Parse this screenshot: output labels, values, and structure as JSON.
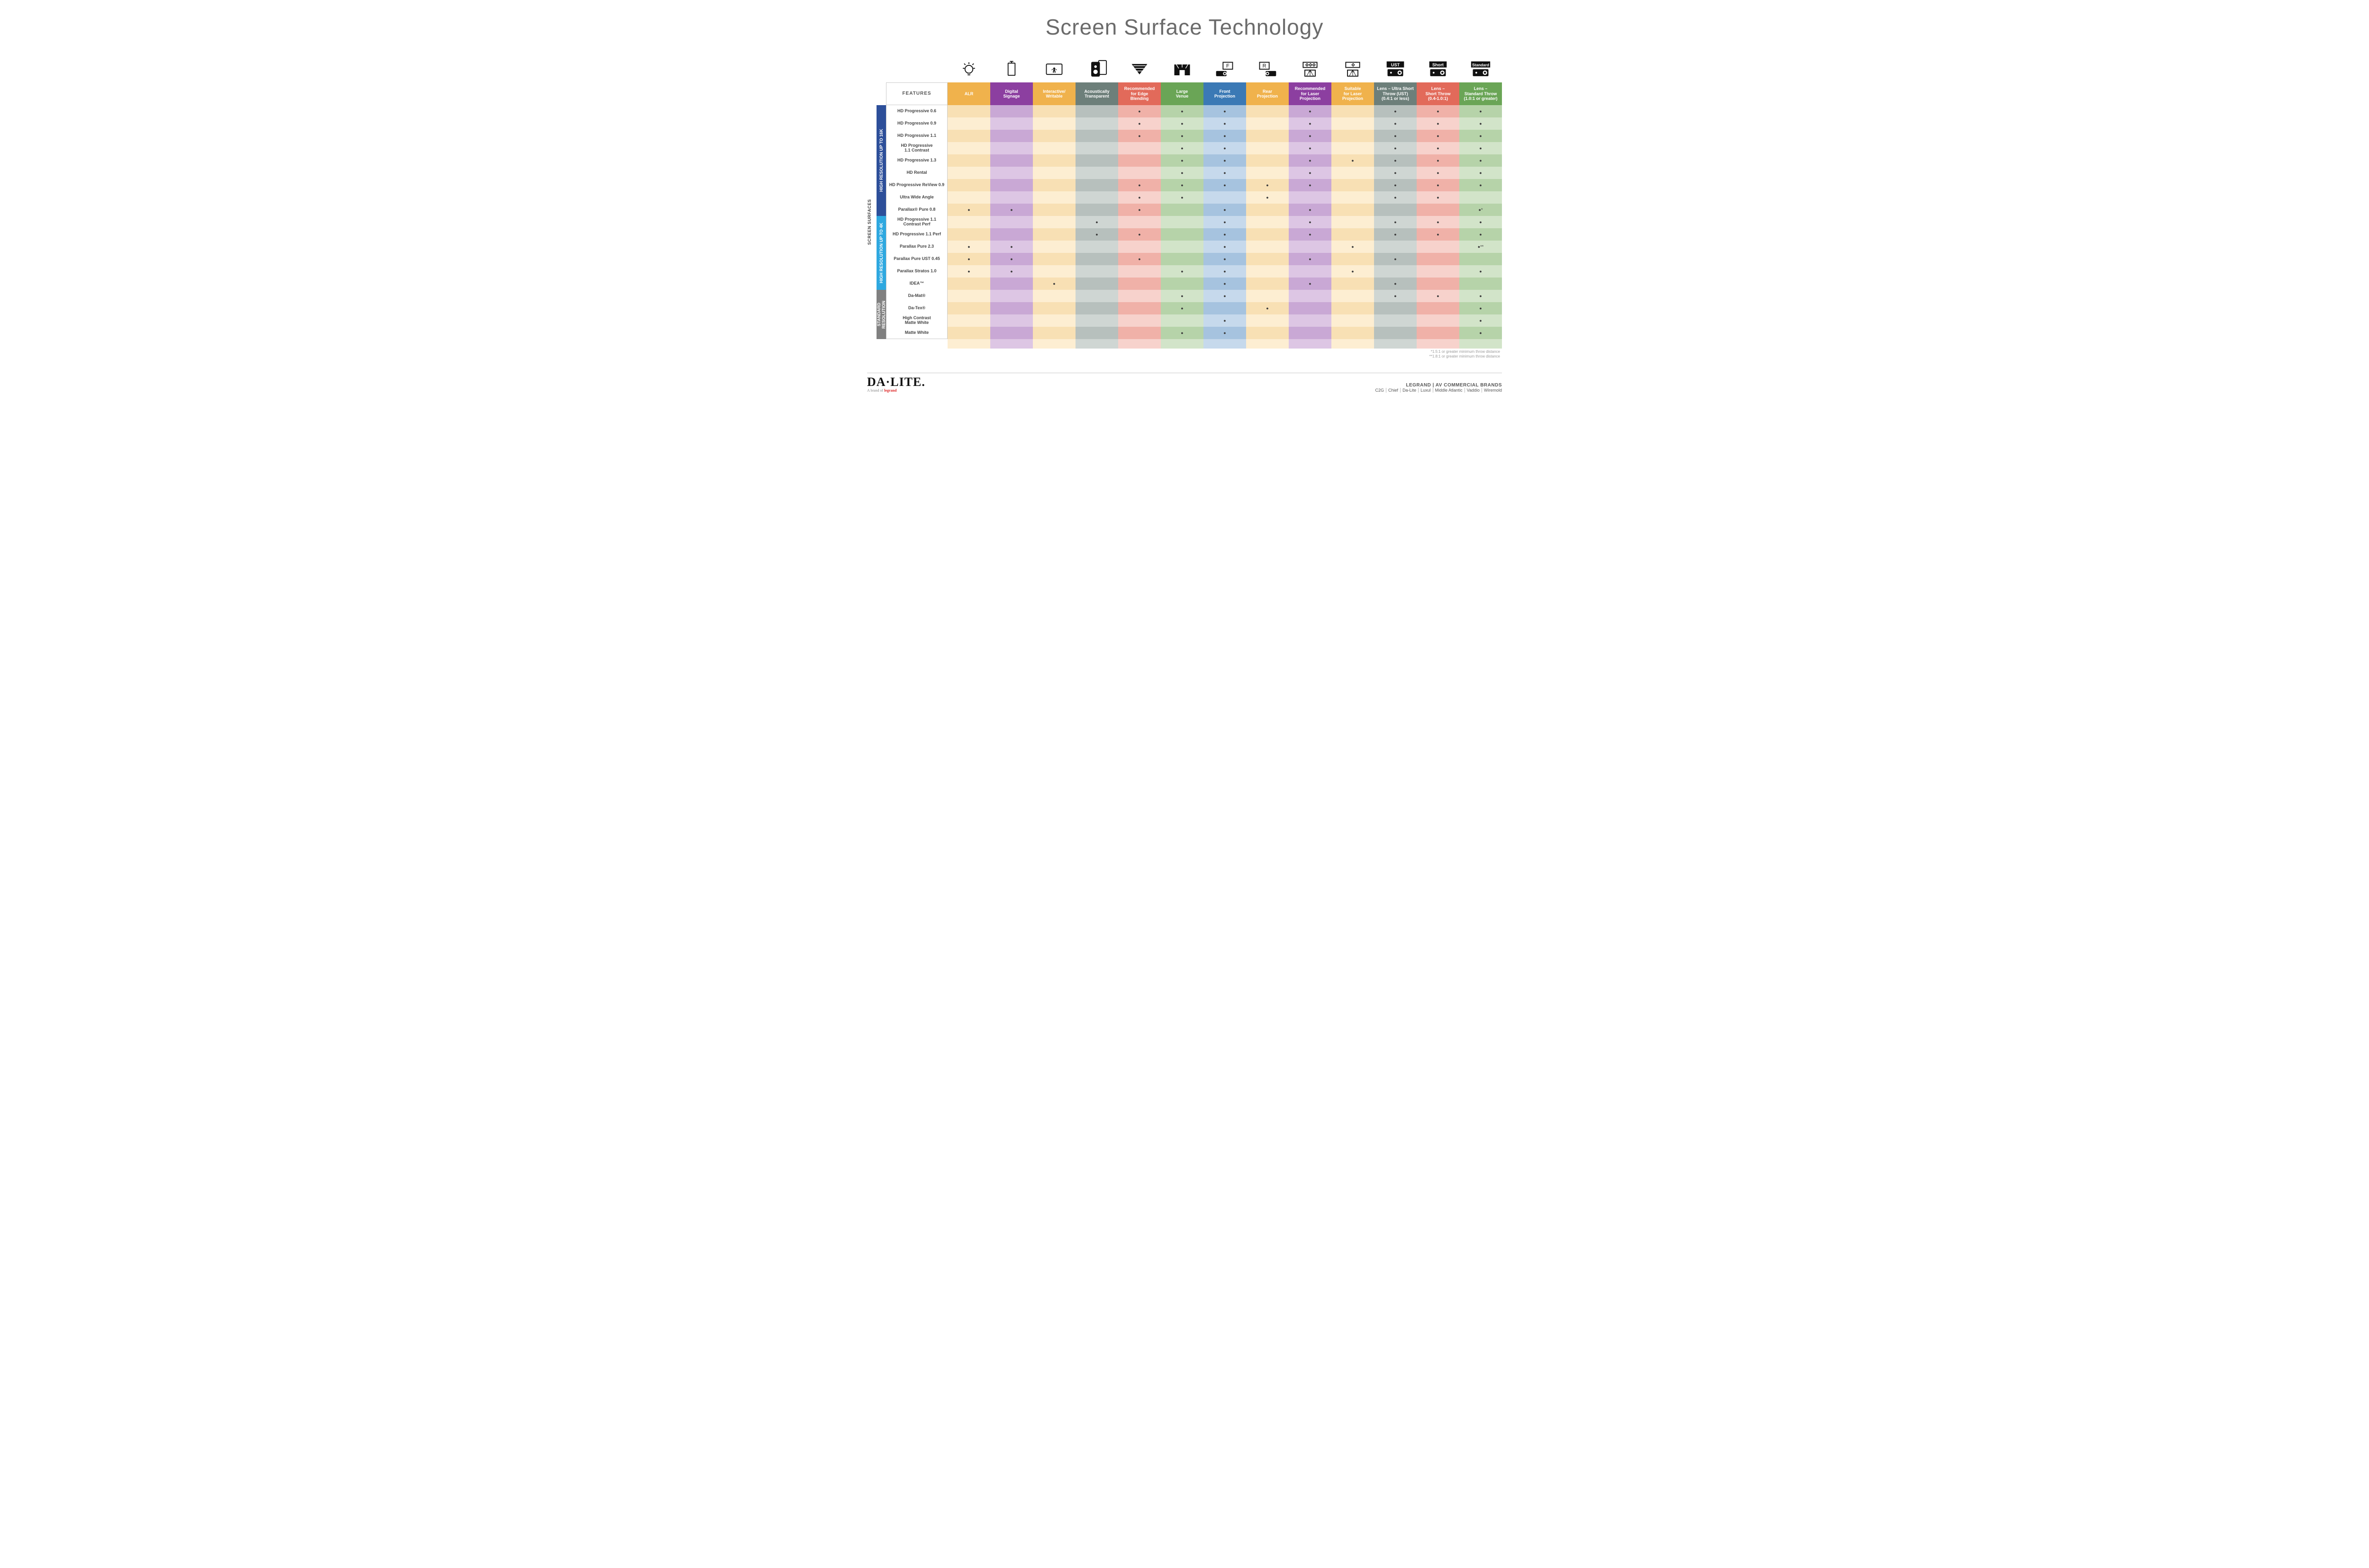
{
  "title": "Screen Surface Technology",
  "features_label": "FEATURES",
  "side_label": "SCREEN SURFACES",
  "columns": [
    {
      "label": "ALR",
      "color": "#f0b24c",
      "lightA": "#f8e0b4",
      "lightB": "#fdeed2"
    },
    {
      "label": "Digital\nSignage",
      "color": "#8c3fa0",
      "lightA": "#c9a8d5",
      "lightB": "#ddc6e4"
    },
    {
      "label": "Interactive/\nWritable",
      "color": "#f0b24c",
      "lightA": "#f8e0b4",
      "lightB": "#fdeed2"
    },
    {
      "label": "Acoustically\nTransparent",
      "color": "#6d7f7a",
      "lightA": "#b7c0bd",
      "lightB": "#cfd6d3"
    },
    {
      "label": "Recommended\nfor Edge\nBlending",
      "color": "#e26a5a",
      "lightA": "#f0b1a8",
      "lightB": "#f7d2cc"
    },
    {
      "label": "Large\nVenue",
      "color": "#6aa556",
      "lightA": "#b6d3a9",
      "lightB": "#d2e4c9"
    },
    {
      "label": "Front\nProjection",
      "color": "#3b79b5",
      "lightA": "#a6c3df",
      "lightB": "#c6d9ec"
    },
    {
      "label": "Rear\nProjection",
      "color": "#f0b24c",
      "lightA": "#f8e0b4",
      "lightB": "#fdeed2"
    },
    {
      "label": "Recommended\nfor Laser\nProjection",
      "color": "#8c3fa0",
      "lightA": "#c9a8d5",
      "lightB": "#ddc6e4"
    },
    {
      "label": "Suitable\nfor Laser\nProjection",
      "color": "#f0b24c",
      "lightA": "#f8e0b4",
      "lightB": "#fdeed2"
    },
    {
      "label": "Lens – Ultra Short\nThrow (UST)\n(0.4:1 or less)",
      "color": "#6d7f7a",
      "lightA": "#b7c0bd",
      "lightB": "#cfd6d3"
    },
    {
      "label": "Lens –\nShort Throw\n(0.4-1.0:1)",
      "color": "#e26a5a",
      "lightA": "#f0b1a8",
      "lightB": "#f7d2cc"
    },
    {
      "label": "Lens –\nStandard Throw\n(1.0:1 or greater)",
      "color": "#6aa556",
      "lightA": "#b6d3a9",
      "lightB": "#d2e4c9"
    }
  ],
  "categories": [
    {
      "label": "HIGH RESOLUTION UP TO 16K",
      "color": "#2d4f9a",
      "rows": [
        {
          "label": "HD Progressive 0.6",
          "cells": [
            "",
            "",
            "",
            "",
            "•",
            "•",
            "•",
            "",
            "•",
            "",
            "•",
            "•",
            "•"
          ]
        },
        {
          "label": "HD Progressive 0.9",
          "cells": [
            "",
            "",
            "",
            "",
            "•",
            "•",
            "•",
            "",
            "•",
            "",
            "•",
            "•",
            "•"
          ]
        },
        {
          "label": "HD Progressive 1.1",
          "cells": [
            "",
            "",
            "",
            "",
            "•",
            "•",
            "•",
            "",
            "•",
            "",
            "•",
            "•",
            "•"
          ]
        },
        {
          "label": "HD Progressive\n1.1 Contrast",
          "cells": [
            "",
            "",
            "",
            "",
            "",
            "•",
            "•",
            "",
            "•",
            "",
            "•",
            "•",
            "•"
          ]
        },
        {
          "label": "HD Progressive 1.3",
          "cells": [
            "",
            "",
            "",
            "",
            "",
            "•",
            "•",
            "",
            "•",
            "•",
            "•",
            "•",
            "•"
          ]
        },
        {
          "label": "HD Rental",
          "cells": [
            "",
            "",
            "",
            "",
            "",
            "•",
            "•",
            "",
            "•",
            "",
            "•",
            "•",
            "•"
          ]
        },
        {
          "label": "HD Progressive ReView 0.9",
          "cells": [
            "",
            "",
            "",
            "",
            "•",
            "•",
            "•",
            "•",
            "•",
            "",
            "•",
            "•",
            "•"
          ]
        },
        {
          "label": "Ultra Wide Angle",
          "cells": [
            "",
            "",
            "",
            "",
            "•",
            "•",
            "",
            "•",
            "",
            "",
            "•",
            "•",
            ""
          ]
        },
        {
          "label": "Parallax® Pure 0.8",
          "cells": [
            "•",
            "•",
            "",
            "",
            "•",
            "",
            "•",
            "",
            "•",
            "",
            "",
            "",
            "•*"
          ]
        }
      ]
    },
    {
      "label": "HIGH RESOLUTION UP TO 4K",
      "color": "#2ea8e0",
      "rows": [
        {
          "label": "HD Progressive 1.1\nContrast Perf",
          "cells": [
            "",
            "",
            "",
            "•",
            "",
            "",
            "•",
            "",
            "•",
            "",
            "•",
            "•",
            "•"
          ]
        },
        {
          "label": "HD Progressive 1.1 Perf",
          "cells": [
            "",
            "",
            "",
            "•",
            "•",
            "",
            "•",
            "",
            "•",
            "",
            "•",
            "•",
            "•"
          ]
        },
        {
          "label": "Parallax Pure 2.3",
          "cells": [
            "•",
            "•",
            "",
            "",
            "",
            "",
            "•",
            "",
            "",
            "•",
            "",
            "",
            "•**"
          ]
        },
        {
          "label": "Parallax Pure UST 0.45",
          "cells": [
            "•",
            "•",
            "",
            "",
            "•",
            "",
            "•",
            "",
            "•",
            "",
            "•",
            "",
            ""
          ]
        },
        {
          "label": "Parallax Stratos 1.0",
          "cells": [
            "•",
            "•",
            "",
            "",
            "",
            "•",
            "•",
            "",
            "",
            "•",
            "",
            "",
            "•"
          ]
        },
        {
          "label": "IDEA™",
          "cells": [
            "",
            "",
            "•",
            "",
            "",
            "",
            "•",
            "",
            "•",
            "",
            "•",
            "",
            ""
          ]
        }
      ]
    },
    {
      "label": "STANDARD\nRESOLUTION",
      "color": "#808080",
      "rows": [
        {
          "label": "Da-Mat®",
          "cells": [
            "",
            "",
            "",
            "",
            "",
            "•",
            "•",
            "",
            "",
            "",
            "•",
            "•",
            "•"
          ]
        },
        {
          "label": "Da-Tex®",
          "cells": [
            "",
            "",
            "",
            "",
            "",
            "•",
            "",
            "•",
            "",
            "",
            "",
            "",
            "•"
          ]
        },
        {
          "label": "High Contrast\nMatte White",
          "cells": [
            "",
            "",
            "",
            "",
            "",
            "",
            "•",
            "",
            "",
            "",
            "",
            "",
            "•"
          ]
        },
        {
          "label": "Matte White",
          "cells": [
            "",
            "",
            "",
            "",
            "",
            "•",
            "•",
            "",
            "",
            "",
            "",
            "",
            "•"
          ]
        }
      ]
    }
  ],
  "footnotes": [
    "*1.5:1 or greater minimum throw distance",
    "**1.8:1 or greater minimum throw distance"
  ],
  "footer": {
    "brand_main": "DA·LITE.",
    "brand_sub_pre": "A brand of ",
    "brand_sub_logo": "legrand",
    "right_title": "LEGRAND | AV COMMERCIAL BRANDS",
    "brands": [
      "C2G",
      "Chief",
      "Da-Lite",
      "Luxul",
      "Middle Atlantic",
      "Vaddio",
      "Wiremold"
    ]
  },
  "icons": {
    "alr": "bulb",
    "signage": "rect",
    "interactive": "touch",
    "acoustic": "speaker",
    "edge": "tri",
    "large": "stage",
    "front": "projF",
    "rear": "projR",
    "recLaser": "laser3",
    "suitLaser": "laser1",
    "ust": "pUST",
    "short": "pShort",
    "std": "pStd"
  }
}
